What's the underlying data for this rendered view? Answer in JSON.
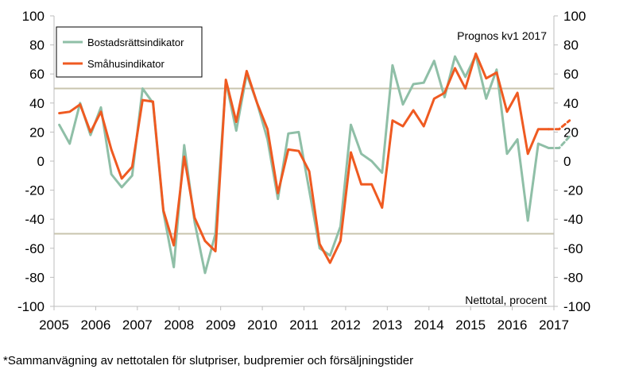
{
  "chart_data": {
    "type": "line",
    "xlabel": "",
    "ylabel": "",
    "ylim": [
      -100,
      100
    ],
    "y_ticks": [
      100,
      80,
      60,
      40,
      20,
      0,
      -20,
      -40,
      -60,
      -80,
      -100
    ],
    "x_tick_labels": [
      "2005",
      "2006",
      "2007",
      "2008",
      "2009",
      "2010",
      "2011",
      "2012",
      "2013",
      "2014",
      "2015",
      "2016",
      "2017"
    ],
    "x_start_year": 2005,
    "points_per_year": 4,
    "reference_lines": [
      50,
      -50
    ],
    "grid": false,
    "legend_position": "top-left",
    "series": [
      {
        "name": "Bostadsrättsindikator",
        "color": "#8fbfa7",
        "values": [
          25,
          12,
          40,
          18,
          37,
          -9,
          -18,
          -10,
          50,
          40,
          -35,
          -73,
          11,
          -42,
          -77,
          -50,
          55,
          21,
          60,
          40,
          15,
          -26,
          19,
          20,
          -20,
          -60,
          -65,
          -45,
          25,
          5,
          0,
          -8,
          66,
          39,
          53,
          54,
          69,
          44,
          72,
          58,
          73,
          43,
          63,
          5,
          15,
          -41,
          12,
          9
        ],
        "forecast_values": [
          9,
          17
        ]
      },
      {
        "name": "Småhusindikator",
        "color": "#ef5a21",
        "values": [
          33,
          34,
          39,
          20,
          34,
          8,
          -12,
          -4,
          42,
          41,
          -34,
          -58,
          3,
          -39,
          -55,
          -62,
          56,
          27,
          62,
          40,
          22,
          -22,
          8,
          7,
          -7,
          -57,
          -70,
          -55,
          6,
          -16,
          -16,
          -32,
          28,
          24,
          35,
          24,
          43,
          47,
          64,
          50,
          74,
          57,
          61,
          34,
          47,
          5,
          22,
          22
        ],
        "forecast_values": [
          22,
          28
        ]
      }
    ],
    "annotations": {
      "forecast_label": "Prognos kv1 2017",
      "unit_label": "Nettotal, procent"
    }
  },
  "footnote": "*Sammanvägning av nettotalen för slutpriser, budpremier och försäljningstider"
}
